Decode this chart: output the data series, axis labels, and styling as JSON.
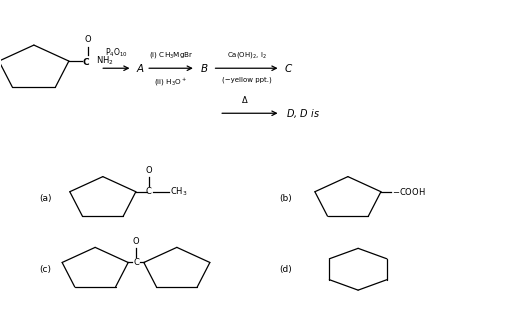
{
  "bg_color": "#ffffff",
  "fig_width": 5.12,
  "fig_height": 3.23,
  "dpi": 100,
  "arrow1_top": "P$_4$O$_{10}$",
  "letter_A": "A",
  "arrow2_top": "(i) CH$_3$MgBr",
  "arrow2_bot": "(ii) H$_3$O$^+$",
  "letter_B": "B",
  "arrow3_top": "Ca(OH)$_2$, I$_2$",
  "arrow3_bot": "(−yellow ppt.)",
  "letter_C": "C",
  "arrow4_top": "Δ",
  "letter_D": "D, D is"
}
